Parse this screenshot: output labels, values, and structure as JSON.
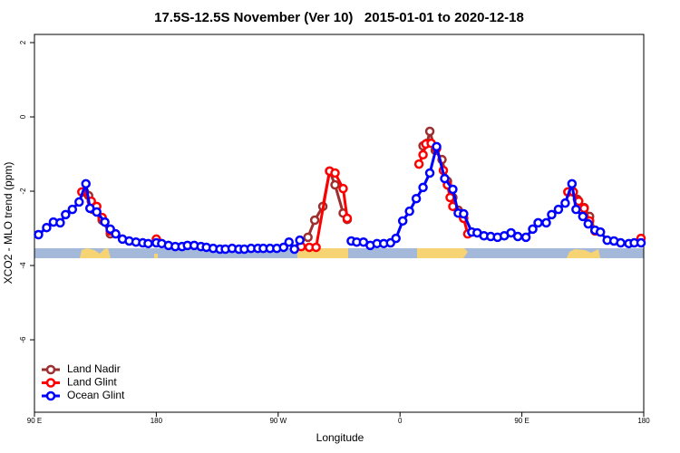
{
  "chart_data": {
    "type": "line",
    "title": "17.5S-12.5S November (Ver 10)   2015-01-01 to 2020-12-18",
    "x_label": "Longitude",
    "y_label": "XCO2 - MLO trend (ppm)",
    "xlim": [
      90,
      540
    ],
    "ylim": [
      -7.95,
      2.22
    ],
    "xticks": [
      {
        "value": 90,
        "label": "90 E"
      },
      180,
      {
        "value": 270,
        "label": "90 W"
      },
      {
        "value": 360,
        "label": "0"
      },
      {
        "value": 450,
        "label": "90 E"
      },
      {
        "value": 540,
        "label": "180"
      }
    ],
    "yticks": [
      2,
      0,
      -2,
      -4,
      -6
    ],
    "grid": false,
    "legend": "bottom-left",
    "series": [
      {
        "name": "Land Nadir",
        "color": "#9e2f2f",
        "x": [
          127,
          130,
          133,
          140,
          146,
          null,
          286,
          292,
          297,
          303,
          308,
          312,
          318,
          321,
          null,
          377,
          380,
          382,
          386,
          391,
          395,
          399,
          403,
          407,
          null,
          484,
          487,
          491,
          496,
          500,
          504
        ],
        "values": [
          -2.02,
          -2.12,
          -2.49,
          -2.78,
          -3.15,
          null,
          -3.32,
          -3.24,
          -2.78,
          -2.41,
          -1.46,
          -1.83,
          -2.59,
          -2.76,
          null,
          -0.78,
          -0.71,
          -0.39,
          -0.9,
          -1.15,
          -1.73,
          -2.17,
          -2.51,
          -2.73,
          null,
          -2.02,
          -1.98,
          -2.22,
          -2.44,
          -2.68,
          -3.05
        ]
      },
      {
        "name": "Land Glint",
        "color": "#ff0000",
        "x": [
          125,
          132,
          136,
          140,
          146,
          null,
          180,
          null,
          287,
          293,
          298,
          308,
          312,
          318,
          321,
          null,
          374,
          377,
          379,
          383,
          387,
          392,
          395,
          397,
          399,
          407,
          410,
          null,
          484,
          488,
          492,
          496,
          500,
          504,
          null,
          538
        ],
        "values": [
          -2.02,
          -2.27,
          -2.41,
          -2.71,
          -3.07,
          null,
          -3.29,
          null,
          -3.49,
          -3.51,
          -3.51,
          -1.46,
          -1.51,
          -1.93,
          -2.73,
          null,
          -1.27,
          -1.02,
          -0.73,
          -0.71,
          -0.85,
          -1.44,
          -1.83,
          -2.17,
          -2.41,
          -2.73,
          -3.15,
          null,
          -2.02,
          -2.02,
          -2.27,
          -2.46,
          -2.8,
          -3.07,
          null,
          -3.27
        ]
      },
      {
        "name": "Ocean Glint",
        "color": "#0000ff",
        "x": [
          93,
          99,
          104,
          109,
          113,
          118,
          123,
          128,
          131,
          136,
          142,
          146,
          150,
          155,
          160,
          165,
          170,
          174,
          180,
          184,
          189,
          194,
          199,
          203,
          208,
          213,
          217,
          222,
          227,
          231,
          236,
          241,
          245,
          250,
          255,
          259,
          264,
          269,
          274,
          278,
          282,
          286,
          null,
          324,
          328,
          333,
          338,
          343,
          348,
          353,
          357,
          362,
          367,
          372,
          377,
          382,
          387,
          393,
          399,
          403,
          407,
          413,
          417,
          422,
          427,
          432,
          437,
          442,
          447,
          453,
          458,
          462,
          468,
          472,
          477,
          482,
          487,
          490,
          495,
          499,
          504,
          508,
          513,
          518,
          523,
          529,
          533,
          538
        ],
        "values": [
          -3.17,
          -2.98,
          -2.83,
          -2.85,
          -2.63,
          -2.49,
          -2.29,
          -1.8,
          -2.46,
          -2.56,
          -2.83,
          -3.02,
          -3.15,
          -3.29,
          -3.34,
          -3.37,
          -3.39,
          -3.41,
          -3.39,
          -3.41,
          -3.46,
          -3.49,
          -3.49,
          -3.46,
          -3.46,
          -3.49,
          -3.51,
          -3.54,
          -3.56,
          -3.56,
          -3.54,
          -3.56,
          -3.56,
          -3.54,
          -3.54,
          -3.54,
          -3.54,
          -3.54,
          -3.51,
          -3.37,
          -3.56,
          -3.32,
          null,
          -3.34,
          -3.37,
          -3.37,
          -3.46,
          -3.41,
          -3.41,
          -3.39,
          -3.27,
          -2.8,
          -2.54,
          -2.2,
          -1.9,
          -1.51,
          -0.8,
          -1.66,
          -1.95,
          -2.59,
          -2.61,
          -3.1,
          -3.12,
          -3.2,
          -3.22,
          -3.24,
          -3.2,
          -3.12,
          -3.22,
          -3.24,
          -3.02,
          -2.85,
          -2.85,
          -2.63,
          -2.49,
          -2.32,
          -1.8,
          -2.49,
          -2.68,
          -2.88,
          -3.05,
          -3.1,
          -3.32,
          -3.34,
          -3.39,
          -3.41,
          -3.39,
          -3.39
        ]
      }
    ]
  }
}
